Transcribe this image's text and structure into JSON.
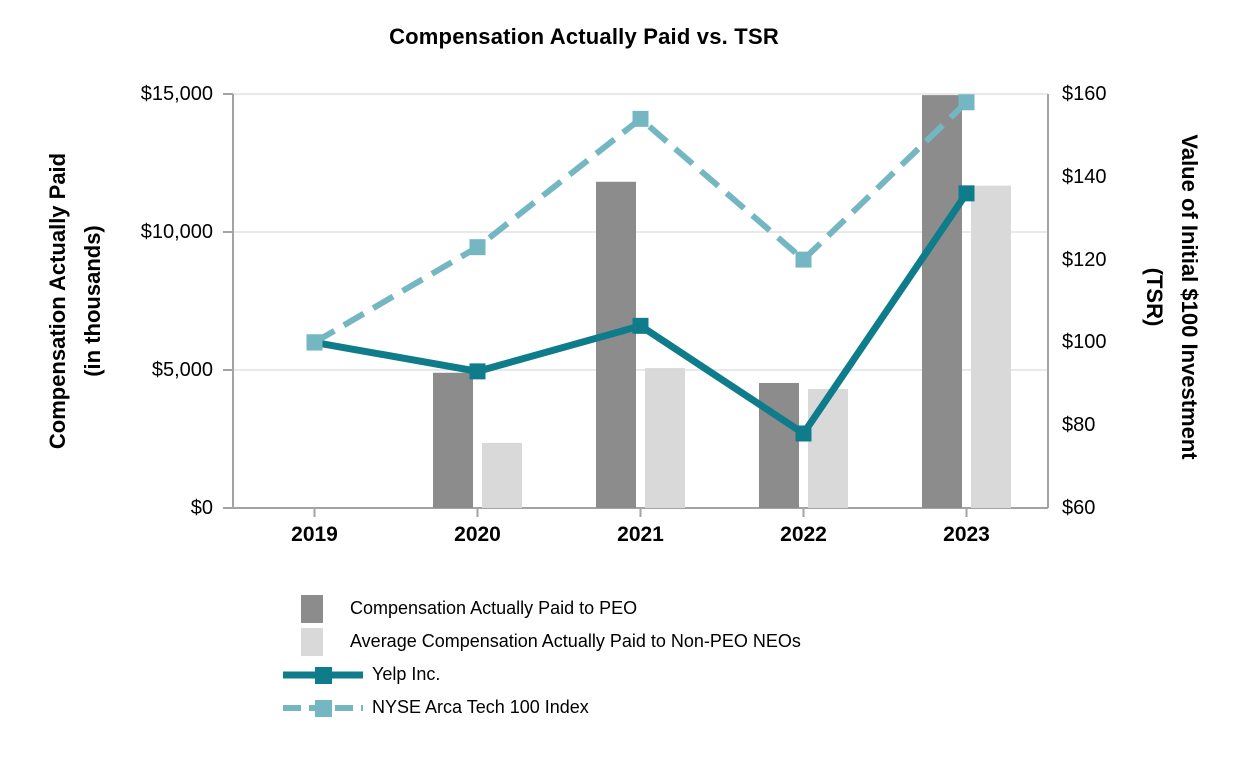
{
  "chart_data": {
    "type": "combo-bar-line",
    "title": "Compensation Actually Paid vs. TSR",
    "categories": [
      "2019",
      "2020",
      "2021",
      "2022",
      "2023"
    ],
    "bar_series": [
      {
        "name": "Compensation Actually Paid to PEO",
        "color": "#8C8C8C",
        "axis": "left",
        "values": [
          null,
          4900,
          11820,
          4530,
          14960
        ]
      },
      {
        "name": "Average Compensation Actually Paid to Non-PEO NEOs",
        "color": "#D9D9D9",
        "axis": "left",
        "values": [
          null,
          2360,
          5070,
          4310,
          11680
        ]
      }
    ],
    "line_series": [
      {
        "name": "Yelp Inc.",
        "color": "#0E7C8A",
        "style": "solid",
        "axis": "right",
        "values": [
          100,
          93,
          104,
          78,
          136
        ]
      },
      {
        "name": "NYSE Arca Tech 100 Index",
        "color": "#74B7C2",
        "style": "dashed",
        "axis": "right",
        "values": [
          100,
          123,
          154,
          120,
          158
        ]
      }
    ],
    "left_axis": {
      "title_lines": [
        "Compensation Actually Paid",
        "(in thousands)"
      ],
      "min": 0,
      "max": 15000,
      "ticks": [
        {
          "value": 0,
          "label": "$0"
        },
        {
          "value": 5000,
          "label": "$5,000"
        },
        {
          "value": 10000,
          "label": "$10,000"
        },
        {
          "value": 15000,
          "label": "$15,000"
        }
      ]
    },
    "right_axis": {
      "title_lines": [
        "Value of Initial $100 Investment",
        "(TSR)"
      ],
      "min": 60,
      "max": 160,
      "ticks": [
        {
          "value": 60,
          "label": "$60"
        },
        {
          "value": 80,
          "label": "$80"
        },
        {
          "value": 100,
          "label": "$100"
        },
        {
          "value": 120,
          "label": "$120"
        },
        {
          "value": 140,
          "label": "$140"
        },
        {
          "value": 160,
          "label": "$160"
        }
      ]
    },
    "grid": "horizontal",
    "legend_position": "bottom-left",
    "colors": {
      "grid": "#E2E2E2",
      "axis": "#A3A3A3",
      "text": "#000000",
      "background": "#FFFFFF"
    }
  }
}
